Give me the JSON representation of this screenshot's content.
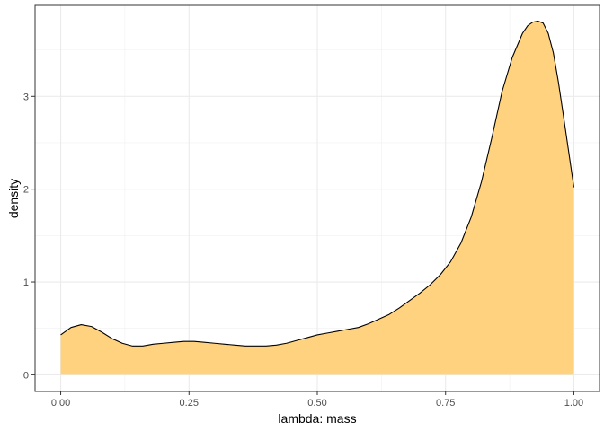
{
  "chart_data": {
    "type": "area",
    "xlabel": "lambda: mass",
    "ylabel": "density",
    "xlim": [
      -0.05,
      1.05
    ],
    "ylim": [
      -0.18,
      3.98
    ],
    "x_ticks": [
      0.0,
      0.25,
      0.5,
      0.75,
      1.0
    ],
    "x_tick_labels": [
      "0.00",
      "0.25",
      "0.50",
      "0.75",
      "1.00"
    ],
    "y_ticks": [
      0,
      1,
      2,
      3
    ],
    "y_tick_labels": [
      "0",
      "1",
      "2",
      "3"
    ],
    "grid": true,
    "legend": "none",
    "series": [
      {
        "fill": "#ffd280",
        "stroke": "#000000",
        "x": [
          0.0,
          0.02,
          0.04,
          0.06,
          0.08,
          0.1,
          0.12,
          0.14,
          0.16,
          0.18,
          0.2,
          0.22,
          0.24,
          0.26,
          0.28,
          0.3,
          0.32,
          0.34,
          0.36,
          0.38,
          0.4,
          0.42,
          0.44,
          0.46,
          0.48,
          0.5,
          0.52,
          0.54,
          0.56,
          0.58,
          0.6,
          0.62,
          0.64,
          0.66,
          0.68,
          0.7,
          0.72,
          0.74,
          0.76,
          0.78,
          0.8,
          0.82,
          0.84,
          0.86,
          0.88,
          0.9,
          0.91,
          0.92,
          0.93,
          0.94,
          0.95,
          0.96,
          0.97,
          0.98,
          0.99,
          1.0
        ],
        "y": [
          0.43,
          0.51,
          0.54,
          0.52,
          0.46,
          0.39,
          0.34,
          0.31,
          0.31,
          0.33,
          0.34,
          0.35,
          0.36,
          0.36,
          0.35,
          0.34,
          0.33,
          0.32,
          0.31,
          0.31,
          0.31,
          0.32,
          0.34,
          0.37,
          0.4,
          0.43,
          0.45,
          0.47,
          0.49,
          0.51,
          0.55,
          0.6,
          0.65,
          0.72,
          0.8,
          0.88,
          0.97,
          1.08,
          1.22,
          1.42,
          1.7,
          2.08,
          2.55,
          3.05,
          3.42,
          3.68,
          3.76,
          3.8,
          3.81,
          3.79,
          3.68,
          3.47,
          3.15,
          2.78,
          2.4,
          2.02
        ]
      }
    ]
  }
}
